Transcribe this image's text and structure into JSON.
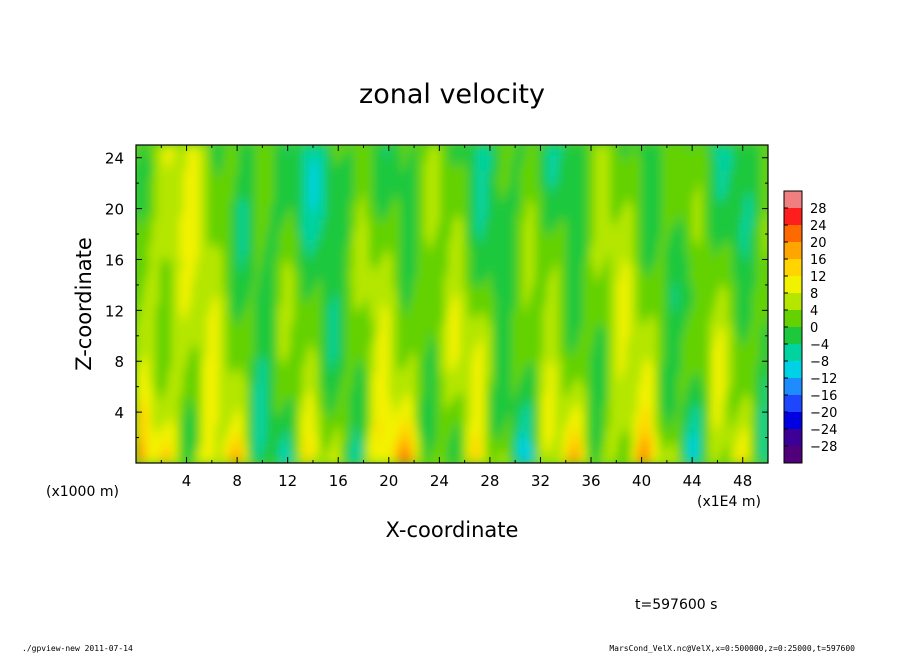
{
  "chart_data": {
    "type": "heatmap",
    "title": "zonal velocity",
    "xlabel": "X-coordinate",
    "ylabel": "Z-coordinate",
    "x_unit_note": "(x1E4 m)",
    "y_unit_note": "(x1000 m)",
    "xlim": [
      0,
      50
    ],
    "ylim": [
      0,
      25
    ],
    "x_ticks": [
      "4",
      "8",
      "12",
      "16",
      "20",
      "24",
      "28",
      "32",
      "36",
      "40",
      "44",
      "48"
    ],
    "y_ticks": [
      "4",
      "8",
      "12",
      "16",
      "20",
      "24"
    ],
    "colorbar_levels": [
      "28",
      "24",
      "20",
      "16",
      "12",
      "8",
      "4",
      "0",
      "−4",
      "−8",
      "−12",
      "−16",
      "−20",
      "−24",
      "−28"
    ],
    "colorbar_colors": [
      "#f08080",
      "#ff1e1e",
      "#ff6a00",
      "#ffa500",
      "#ffd400",
      "#f2f200",
      "#b4e600",
      "#64d200",
      "#1ec83c",
      "#00d2a0",
      "#00d2e6",
      "#1e8cff",
      "#1e46ff",
      "#0000e0",
      "#3c0096",
      "#500078"
    ],
    "grid": false,
    "time_label": "t=597600 s"
  },
  "footer": {
    "left": "./gpview-new   2011-07-14",
    "right": "MarsCond_VelX.nc@VelX,x=0:500000,z=0:25000,t=597600"
  }
}
